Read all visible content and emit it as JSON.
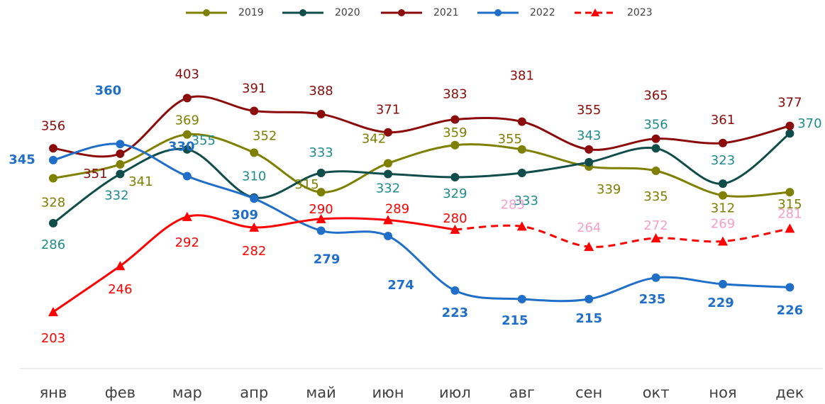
{
  "chart_data": {
    "type": "line",
    "categories": [
      "янв",
      "фев",
      "мар",
      "апр",
      "май",
      "июн",
      "июл",
      "авг",
      "сен",
      "окт",
      "ноя",
      "дек"
    ],
    "ylim": [
      150,
      455
    ],
    "legend": "top",
    "series": [
      {
        "name": "2019",
        "color": "#7f7f00",
        "label_color": "#7f7f00",
        "marker": "circle",
        "values": [
          328,
          341,
          369,
          352,
          315,
          342,
          359,
          355,
          339,
          335,
          312,
          315
        ]
      },
      {
        "name": "2020",
        "color": "#0e4d4a",
        "label_color": "#1e8c8c",
        "marker": "circle",
        "values": [
          286,
          332,
          355,
          310,
          333,
          332,
          329,
          333,
          343,
          356,
          323,
          370
        ]
      },
      {
        "name": "2021",
        "color": "#8b0a0a",
        "label_color": "#8b0a0a",
        "marker": "circle",
        "values": [
          356,
          351,
          403,
          391,
          388,
          371,
          383,
          381,
          355,
          365,
          361,
          377
        ]
      },
      {
        "name": "2022",
        "color": "#1f6fc8",
        "label_color": "#1f6fc8",
        "bold_labels": true,
        "marker": "circle",
        "values": [
          345,
          360,
          330,
          309,
          279,
          274,
          223,
          215,
          215,
          235,
          229,
          226
        ]
      },
      {
        "name": "2023",
        "color": "#ff0000",
        "label_color": "#ff0000",
        "dashed_from": 6,
        "dashed_label_color": "#f4a0c8",
        "marker": "triangle",
        "values": [
          203,
          246,
          292,
          282,
          290,
          289,
          280,
          283,
          264,
          272,
          269,
          281
        ]
      }
    ]
  }
}
